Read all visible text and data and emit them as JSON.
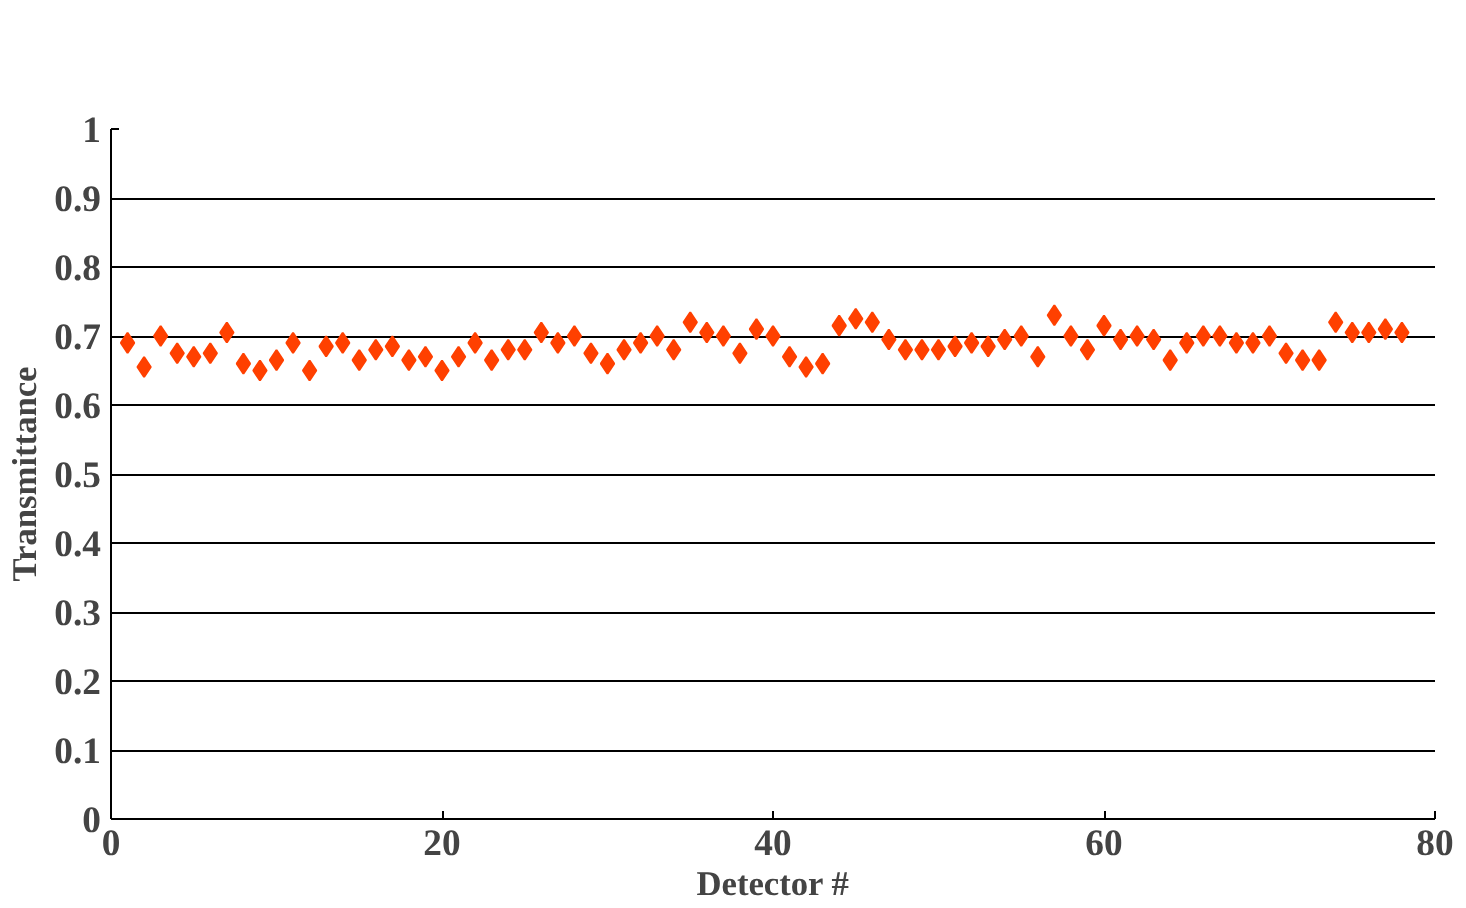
{
  "chart_data": {
    "type": "scatter",
    "xlabel": "Detector #",
    "ylabel": "Transmittance",
    "marker": "diamond",
    "grid": "y",
    "x": [
      1,
      2,
      3,
      4,
      5,
      6,
      7,
      8,
      9,
      10,
      11,
      12,
      13,
      14,
      15,
      16,
      17,
      18,
      19,
      20,
      21,
      22,
      23,
      24,
      25,
      26,
      27,
      28,
      29,
      30,
      31,
      32,
      33,
      34,
      35,
      36,
      37,
      38,
      39,
      40,
      41,
      42,
      43,
      44,
      45,
      46,
      47,
      48,
      49,
      50,
      51,
      52,
      53,
      54,
      55,
      56,
      57,
      58,
      59,
      60,
      61,
      62,
      63,
      64,
      65,
      66,
      67,
      68,
      69,
      70,
      71,
      72,
      73,
      74,
      75,
      76,
      77,
      78
    ],
    "series": [
      {
        "color": "#ff4000",
        "values": [
          0.69,
          0.655,
          0.7,
          0.675,
          0.67,
          0.675,
          0.705,
          0.66,
          0.65,
          0.665,
          0.69,
          0.65,
          0.685,
          0.69,
          0.665,
          0.68,
          0.685,
          0.665,
          0.67,
          0.65,
          0.67,
          0.69,
          0.665,
          0.68,
          0.68,
          0.705,
          0.69,
          0.7,
          0.675,
          0.66,
          0.68,
          0.69,
          0.7,
          0.68,
          0.72,
          0.705,
          0.7,
          0.675,
          0.71,
          0.7,
          0.67,
          0.655,
          0.66,
          0.715,
          0.725,
          0.72,
          0.695,
          0.68,
          0.68,
          0.68,
          0.685,
          0.69,
          0.685,
          0.695,
          0.7,
          0.67,
          0.73,
          0.7,
          0.68,
          0.715,
          0.695,
          0.7,
          0.695,
          0.665,
          0.69,
          0.7,
          0.7,
          0.69,
          0.69,
          0.7,
          0.675,
          0.665,
          0.665,
          0.72,
          0.705,
          0.705,
          0.71,
          0.705
        ]
      }
    ],
    "xlim": [
      0,
      80
    ],
    "xticks": [
      0,
      20,
      40,
      60,
      80
    ],
    "ylim": [
      0,
      1
    ],
    "yticks": [
      {
        "value": 0,
        "label": "0"
      },
      {
        "value": 0.1,
        "label": "0.1"
      },
      {
        "value": 0.2,
        "label": "0.2"
      },
      {
        "value": 0.3,
        "label": "0.3"
      },
      {
        "value": 0.4,
        "label": "0.4"
      },
      {
        "value": 0.5,
        "label": "0.5"
      },
      {
        "value": 0.6,
        "label": "0.6"
      },
      {
        "value": 0.7,
        "label": "0.7"
      },
      {
        "value": 0.8,
        "label": "0.8"
      },
      {
        "value": 0.9,
        "label": "0.9"
      },
      {
        "value": 1,
        "label": "1"
      }
    ]
  }
}
